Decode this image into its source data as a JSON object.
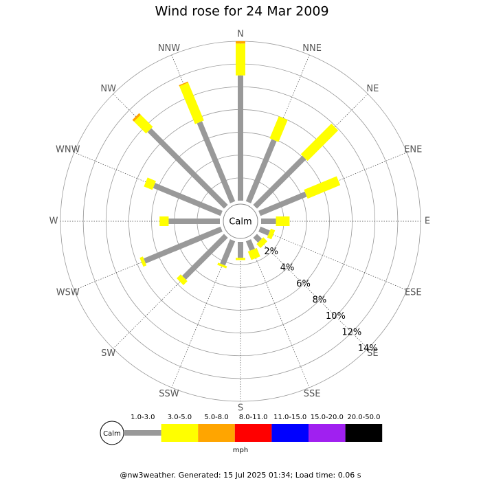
{
  "chart_data": {
    "type": "windrose",
    "title": "Wind rose for 24 Mar 2009",
    "directions": [
      "N",
      "NNE",
      "NE",
      "ENE",
      "E",
      "ESE",
      "SE",
      "SSE",
      "S",
      "SSW",
      "SW",
      "WSW",
      "W",
      "WNW",
      "NW",
      "NNW"
    ],
    "center_label": "Calm",
    "unit_label": "mph",
    "series": [
      {
        "name": "1.0-3.0",
        "color": "#999999",
        "values": [
          11.0,
          5.9,
          6.1,
          4.4,
          1.3,
          0.9,
          0.6,
          0.9,
          1.4,
          2.3,
          5.2,
          7.3,
          4.5,
          6.4,
          9.5,
          7.6
        ]
      },
      {
        "name": "3.0-5.0",
        "color": "#ffff00",
        "values": [
          2.8,
          2.1,
          3.8,
          3.1,
          1.2,
          0.4,
          0.5,
          0.8,
          0.2,
          0.2,
          0.5,
          0.3,
          0.8,
          0.8,
          1.5,
          3.6
        ]
      },
      {
        "name": "5.0-8.0",
        "color": "#ffa500",
        "values": [
          0.2,
          0,
          0,
          0,
          0,
          0,
          0,
          0,
          0,
          0,
          0,
          0,
          0,
          0,
          0.2,
          0.1
        ]
      },
      {
        "name": "8.0-11.0",
        "color": "#ff0000",
        "values": [
          0,
          0,
          0,
          0,
          0,
          0,
          0,
          0,
          0,
          0,
          0,
          0,
          0,
          0,
          0,
          0
        ]
      },
      {
        "name": "11.0-15.0",
        "color": "#0000ff",
        "values": [
          0,
          0,
          0,
          0,
          0,
          0,
          0,
          0,
          0,
          0,
          0,
          0,
          0,
          0,
          0,
          0
        ]
      },
      {
        "name": "15.0-20.0",
        "color": "#a020f0",
        "values": [
          0,
          0,
          0,
          0,
          0,
          0,
          0,
          0,
          0,
          0,
          0,
          0,
          0,
          0,
          0,
          0
        ]
      },
      {
        "name": "20.0-50.0",
        "color": "#000000",
        "values": [
          0,
          0,
          0,
          0,
          0,
          0,
          0,
          0,
          0,
          0,
          0,
          0,
          0,
          0,
          0,
          0
        ]
      }
    ],
    "rlim": [
      0,
      14
    ],
    "rticks": [
      {
        "value": 2,
        "label": "2%"
      },
      {
        "value": 4,
        "label": "4%"
      },
      {
        "value": 6,
        "label": "6%"
      },
      {
        "value": 8,
        "label": "8%"
      },
      {
        "value": 10,
        "label": "10%"
      },
      {
        "value": 12,
        "label": "12%"
      },
      {
        "value": 14,
        "label": "14%"
      }
    ],
    "footer": "@nw3weather. Generated: 15 Jul 2025 01:34; Load time: 0.06 s"
  }
}
